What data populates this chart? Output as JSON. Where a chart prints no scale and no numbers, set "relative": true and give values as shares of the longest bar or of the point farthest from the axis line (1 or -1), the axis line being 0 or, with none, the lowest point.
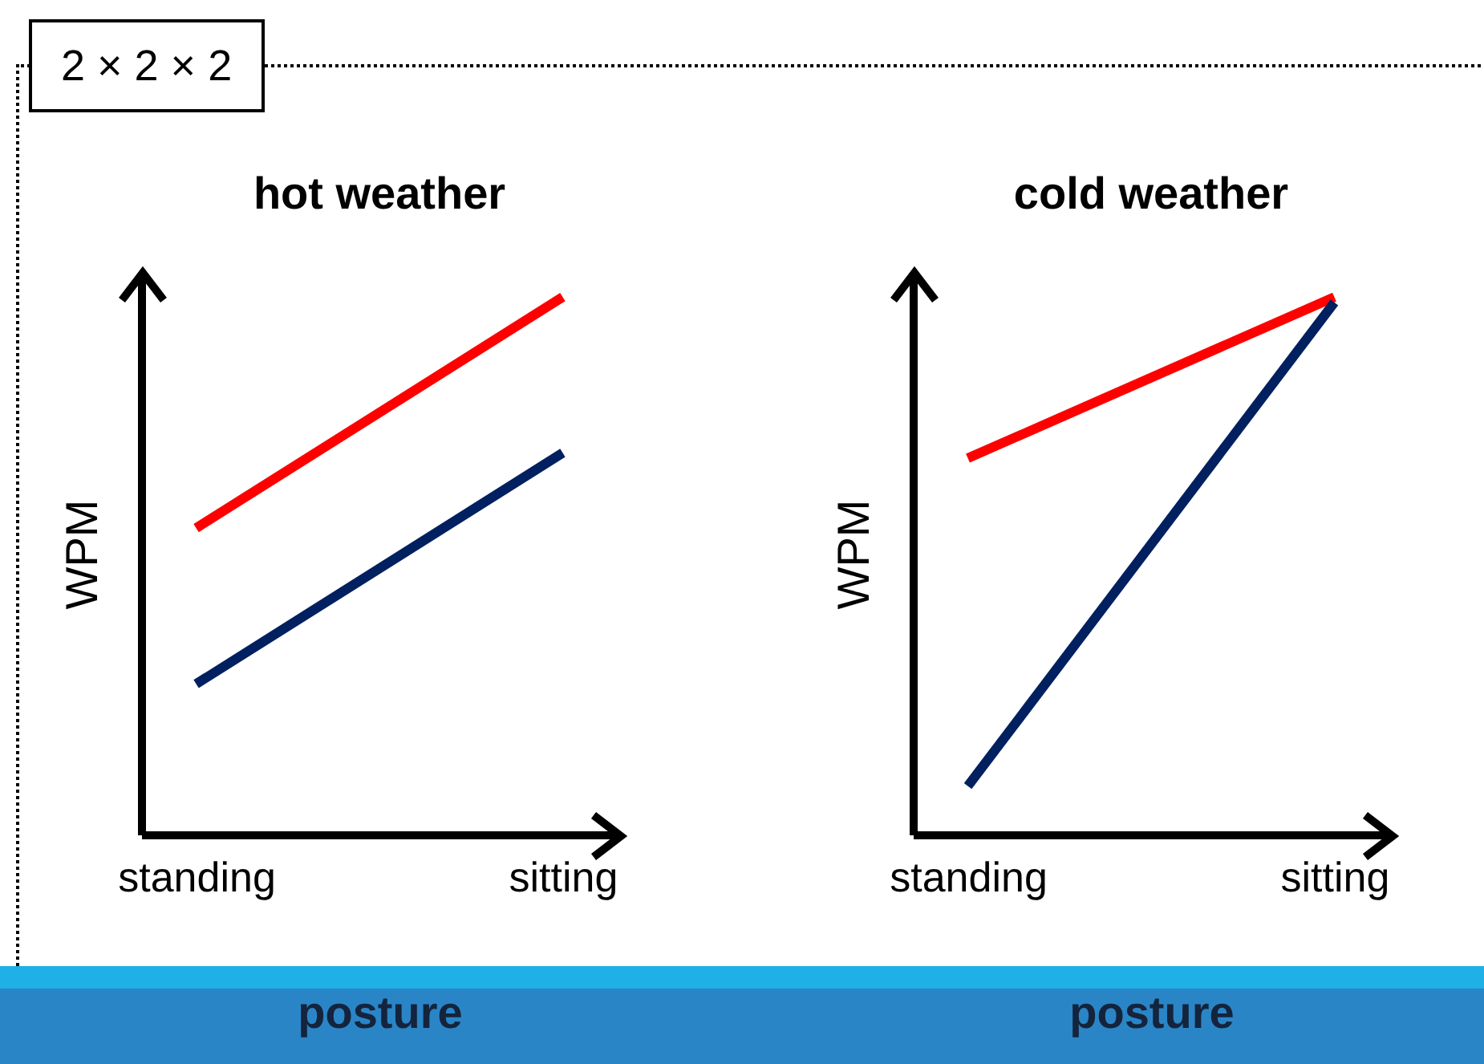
{
  "chart_data": [
    {
      "type": "line",
      "title": "hot weather",
      "xlabel": "posture",
      "ylabel": "WPM",
      "categories": [
        "standing",
        "sitting"
      ],
      "relative": true,
      "annotations": [
        "2 × 2 × 2"
      ],
      "series": [
        {
          "color": "#ff0000",
          "values": [
            0.57,
            1
          ]
        },
        {
          "color": "#002060",
          "values": [
            0.28,
            0.71
          ]
        }
      ]
    },
    {
      "type": "line",
      "title": "cold weather",
      "xlabel": "posture",
      "ylabel": "WPM",
      "categories": [
        "standing",
        "sitting"
      ],
      "relative": true,
      "series": [
        {
          "color": "#ff0000",
          "values": [
            0.7,
            1
          ]
        },
        {
          "color": "#002060",
          "values": [
            0.09,
            0.99
          ]
        }
      ]
    }
  ]
}
